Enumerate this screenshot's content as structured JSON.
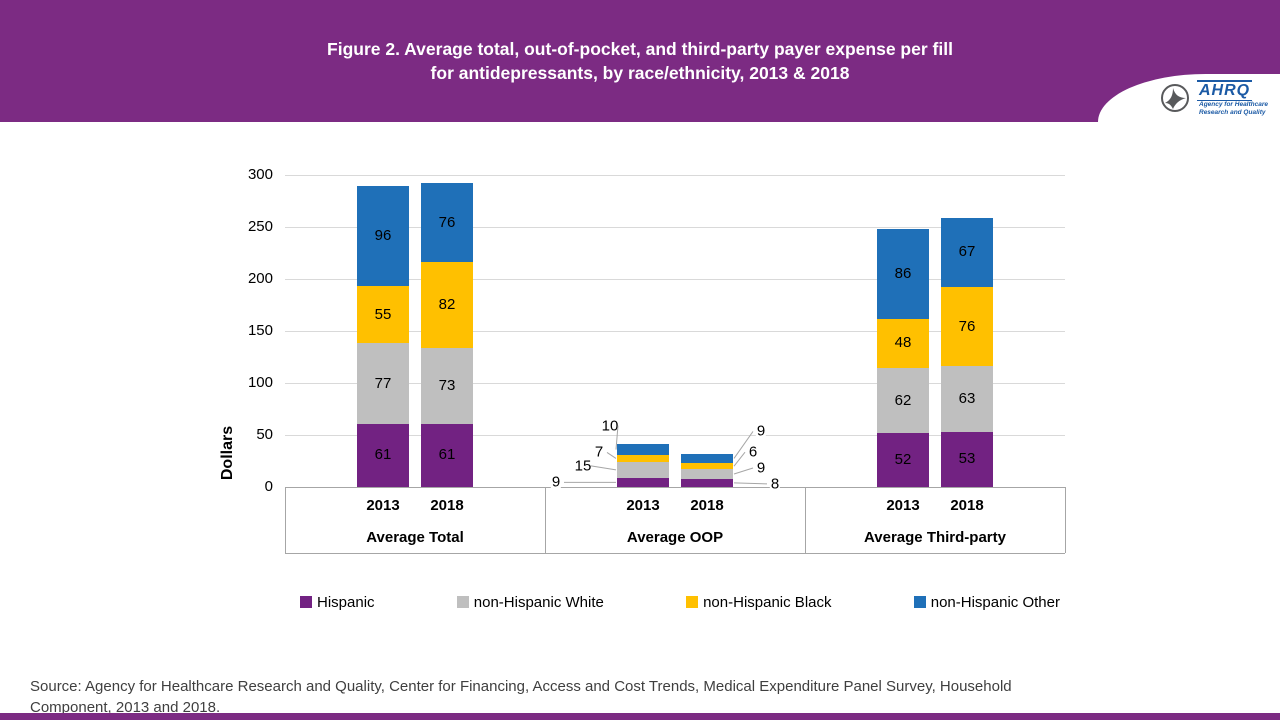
{
  "header": {
    "title_line1": "Figure 2. Average total, out-of-pocket, and third-party payer expense per fill",
    "title_line2": "for antidepressants, by race/ethnicity, 2013 & 2018",
    "background_color": "#7C2B83",
    "logo": {
      "acronym": "AHRQ",
      "tagline_line1": "Agency for Healthcare",
      "tagline_line2": "Research and Quality"
    }
  },
  "chart_data": {
    "type": "bar",
    "stacked": true,
    "title": "Figure 2. Average total, out-of-pocket, and third-party payer expense per fill for antidepressants, by race/ethnicity, 2013 & 2018",
    "xlabel": "",
    "ylabel": "Dollars",
    "ylim": [
      0,
      300
    ],
    "yticks": [
      0,
      50,
      100,
      150,
      200,
      250,
      300
    ],
    "grid": true,
    "legend_position": "bottom",
    "group_labels": [
      "Average Total",
      "Average OOP",
      "Average Third-party"
    ],
    "bar_labels": [
      "2013",
      "2018",
      "2013",
      "2018",
      "2013",
      "2018"
    ],
    "bar_group_index": [
      0,
      0,
      1,
      1,
      2,
      2
    ],
    "value_label_placement": [
      "inside",
      "inside",
      "callout-left",
      "callout-right",
      "inside",
      "inside"
    ],
    "series": [
      {
        "name": "Hispanic",
        "color": "#722282",
        "values": [
          61,
          61,
          9,
          8,
          52,
          53
        ]
      },
      {
        "name": "non-Hispanic White",
        "color": "#BFBFBF",
        "values": [
          77,
          73,
          15,
          9,
          62,
          63
        ]
      },
      {
        "name": "non-Hispanic Black",
        "color": "#FFC000",
        "values": [
          55,
          82,
          7,
          6,
          48,
          76
        ]
      },
      {
        "name": "non-Hispanic Other",
        "color": "#1F70B8",
        "values": [
          96,
          76,
          10,
          9,
          86,
          67
        ]
      }
    ],
    "bar_totals": [
      289,
      292,
      41,
      32,
      248,
      259
    ]
  },
  "source": {
    "text": "Source: Agency for Healthcare Research and Quality, Center for Financing, Access and Cost Trends, Medical Expenditure Panel Survey, Household Component, 2013 and 2018."
  }
}
